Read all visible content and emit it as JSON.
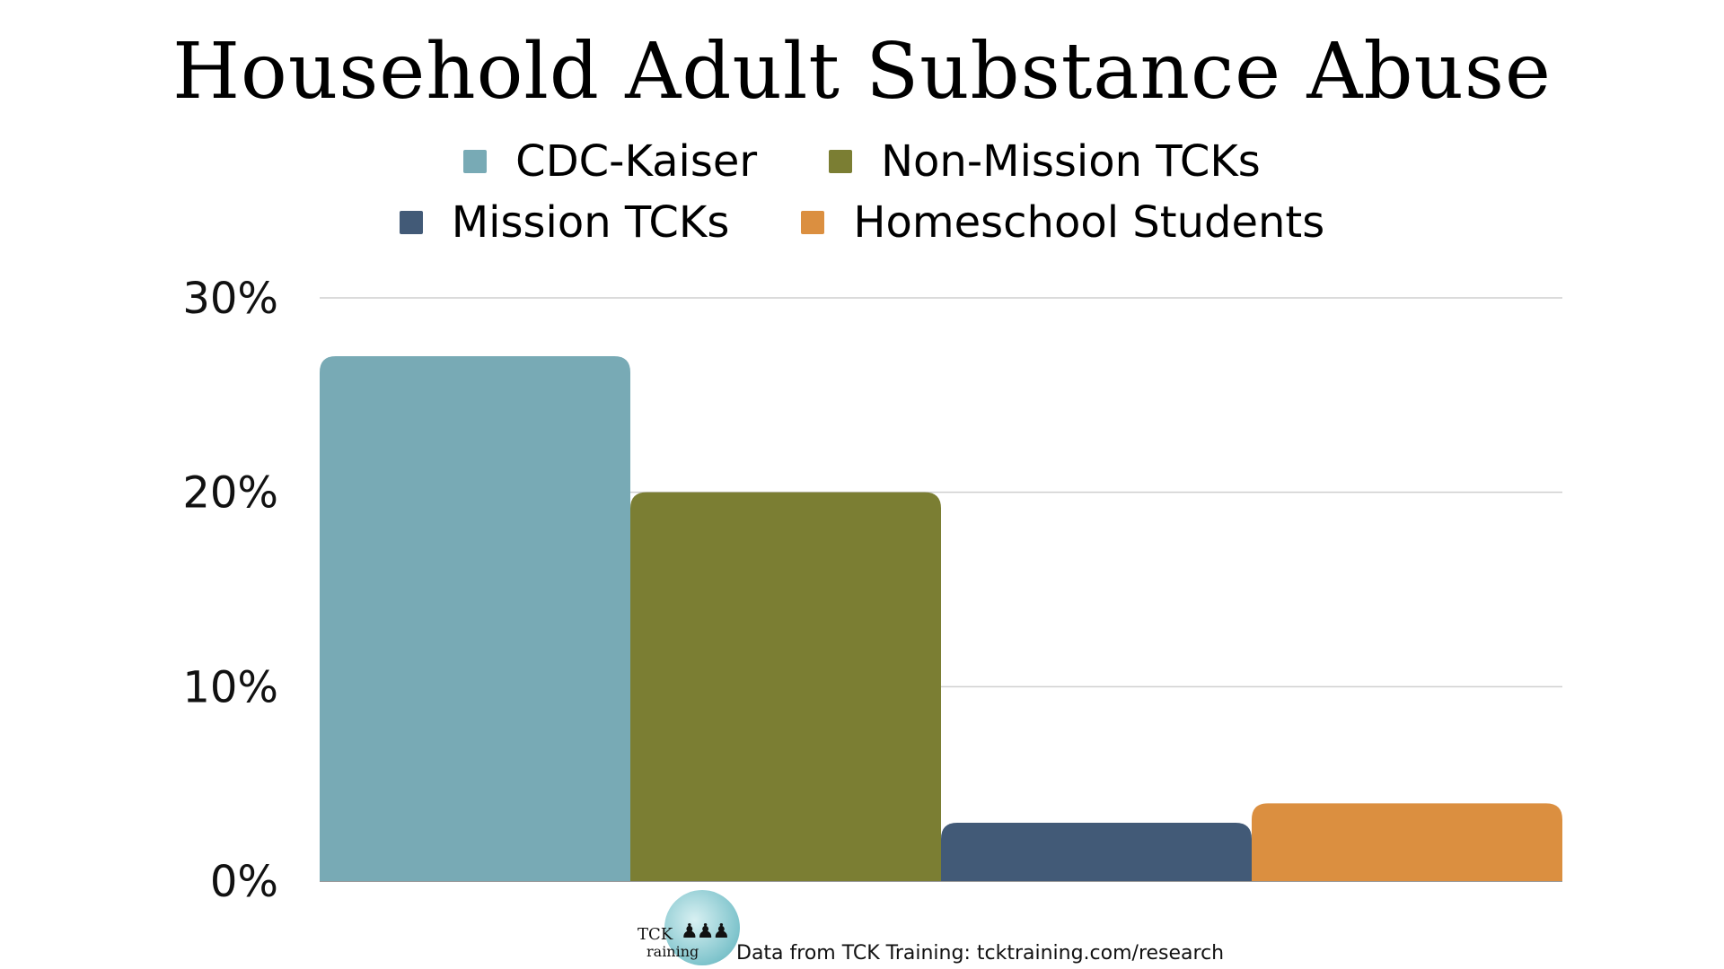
{
  "chart_data": {
    "type": "bar",
    "title": "Household Adult Substance Abuse",
    "xlabel": "",
    "ylabel": "",
    "ylim": [
      0,
      30
    ],
    "yticks": [
      0,
      10,
      20,
      30
    ],
    "ytick_labels": [
      "0%",
      "10%",
      "20%",
      "30%"
    ],
    "grid": true,
    "legend_placement": "top-center",
    "series": [
      {
        "name": "CDC-Kaiser",
        "values": [
          27
        ],
        "color": "#78aab5"
      },
      {
        "name": "Non-Mission TCKs",
        "values": [
          20
        ],
        "color": "#7b7e33"
      },
      {
        "name": "Mission TCKs",
        "values": [
          3
        ],
        "color": "#425a77"
      },
      {
        "name": "Homeschool Students",
        "values": [
          4
        ],
        "color": "#db8f40"
      }
    ]
  },
  "legend": {
    "items": [
      {
        "label": "CDC-Kaiser",
        "color": "#78aab5"
      },
      {
        "label": "Non-Mission TCKs",
        "color": "#7b7e33"
      },
      {
        "label": "Mission TCKs",
        "color": "#425a77"
      },
      {
        "label": "Homeschool Students",
        "color": "#db8f40"
      }
    ]
  },
  "footer": {
    "source_note": "Data from TCK Training: tcktraining.com/research",
    "logo_text_top": "TCK",
    "logo_text_bottom": "raining",
    "logo_icon": "family-figures-icon"
  }
}
